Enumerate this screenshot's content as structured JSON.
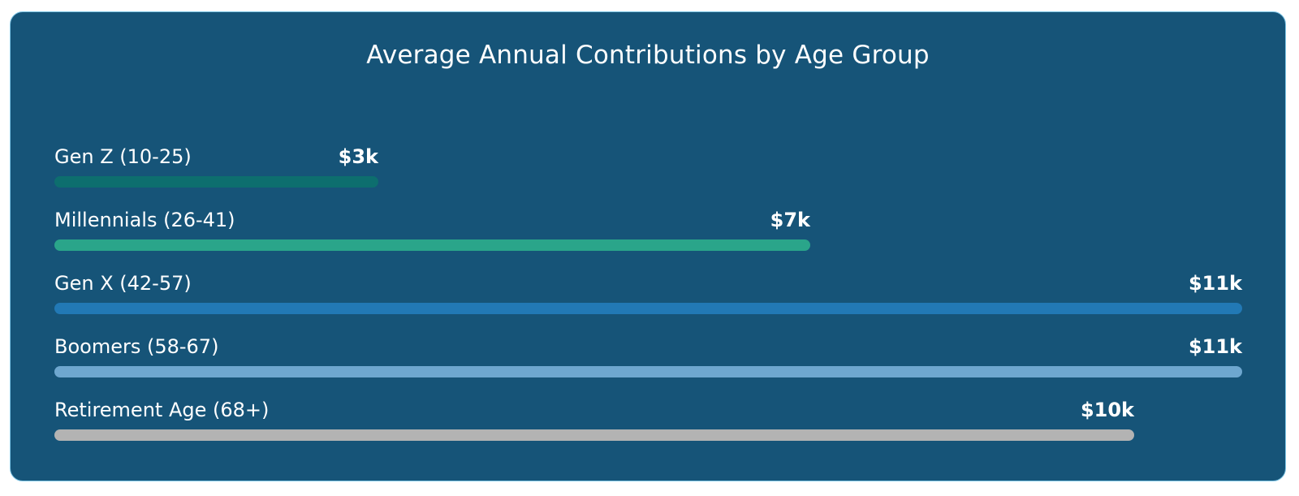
{
  "chart_data": {
    "type": "bar",
    "orientation": "horizontal",
    "title": "Average Annual Contributions by Age Group",
    "categories": [
      "Gen Z (10-25)",
      "Millennials (26-41)",
      "Gen X (42-57)",
      "Boomers (58-67)",
      "Retirement Age (68+)"
    ],
    "values": [
      3,
      7,
      11,
      11,
      10
    ],
    "value_labels": [
      "$3k",
      "$7k",
      "$11k",
      "$11k",
      "$10k"
    ],
    "unit": "$k",
    "xlim": [
      0,
      11
    ],
    "grid": false,
    "bar_colors": [
      "#0d6e6e",
      "#2aa58a",
      "#2279b5",
      "#6ea7cf",
      "#b3b3b3"
    ]
  },
  "theme": {
    "card_background": "#165478",
    "card_border": "#7fc6e6",
    "text_color": "#ffffff"
  }
}
